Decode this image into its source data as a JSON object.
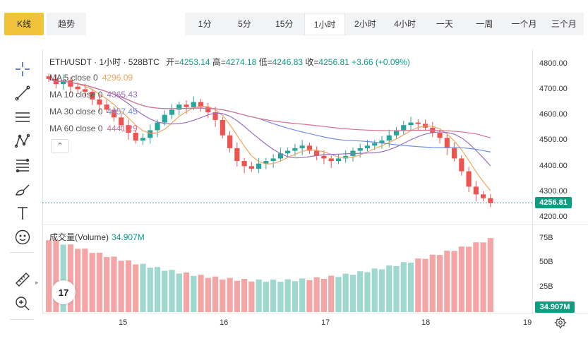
{
  "tabs": [
    {
      "label": "K线",
      "active": true
    },
    {
      "label": "趋势",
      "active": false
    }
  ],
  "intervals": [
    {
      "label": "1分",
      "active": false
    },
    {
      "label": "5分",
      "active": false
    },
    {
      "label": "15分",
      "active": false
    },
    {
      "label": "1小时",
      "active": true
    },
    {
      "label": "2小时",
      "active": false
    },
    {
      "label": "4小时",
      "active": false
    },
    {
      "label": "一天",
      "active": false
    },
    {
      "label": "一周",
      "active": false
    },
    {
      "label": "一个月",
      "active": false
    },
    {
      "label": "三个月",
      "active": false
    }
  ],
  "toolbar": {
    "icons": [
      "crosshair-icon",
      "trend-line-icon",
      "horizontal-lines-icon",
      "pattern-icon",
      "fib-retracement-icon",
      "brush-icon",
      "text-icon",
      "emoji-icon",
      "ruler-icon",
      "zoom-in-icon"
    ]
  },
  "legend": {
    "title": "ETH/USDT · 1小时 · 528BTC",
    "open_label": "开=",
    "open": "4253.14",
    "high_label": "高=",
    "high": "4274.18",
    "low_label": "低=",
    "low": "4246.83",
    "close_label": "收=",
    "close": "4256.81",
    "change": "+3.66 (+0.09%)"
  },
  "ma": [
    {
      "label": "MA 5 close 0",
      "value": "4296.09",
      "color": "#f2a55c"
    },
    {
      "label": "MA 10 close 0",
      "value": "4365.43",
      "color": "#9b6fc0"
    },
    {
      "label": "MA 30 close 0",
      "value": "4457.45",
      "color": "#6f8ee8"
    },
    {
      "label": "MA 60 close 0",
      "value": "4441.29",
      "color": "#d9708f"
    }
  ],
  "collapse_glyph": "⌃",
  "volume": {
    "label": "成交量(Volume)",
    "value": "34.907M",
    "axis": [
      "75B",
      "50B",
      "25B"
    ]
  },
  "price_axis": [
    "4800.00",
    "4700.00",
    "4600.00",
    "4500.00",
    "4400.00",
    "4300.00",
    "4200.00"
  ],
  "last_price": "4256.81",
  "date_ticks": [
    "15",
    "16",
    "17",
    "18",
    "19"
  ],
  "logo_text": "17",
  "colors": {
    "up": "#26a69a",
    "down": "#ef5350",
    "vol_up": "#9fd8cf",
    "vol_down": "#f4a6a6",
    "accent": "#f0c43a"
  },
  "chart_data": {
    "type": "candlestick",
    "interval": "1小时",
    "ylim": [
      4200,
      4800
    ],
    "x_ticks": [
      "15",
      "16",
      "17",
      "18",
      "19"
    ],
    "candles_close": [
      4740,
      4720,
      4735,
      4710,
      4700,
      4690,
      4660,
      4640,
      4620,
      4590,
      4560,
      4530,
      4500,
      4510,
      4540,
      4570,
      4600,
      4620,
      4640,
      4630,
      4650,
      4630,
      4610,
      4580,
      4520,
      4470,
      4420,
      4400,
      4390,
      4410,
      4420,
      4430,
      4450,
      4460,
      4470,
      4480,
      4460,
      4440,
      4430,
      4420,
      4430,
      4440,
      4460,
      4470,
      4480,
      4490,
      4500,
      4520,
      4540,
      4560,
      4570,
      4565,
      4550,
      4530,
      4510,
      4470,
      4430,
      4380,
      4320,
      4290,
      4275,
      4256.81
    ],
    "ma": {
      "MA 5": 4296.09,
      "MA 10": 4365.43,
      "MA 30": 4457.45,
      "MA 60": 4441.29
    },
    "volume_last": "34.907M"
  }
}
